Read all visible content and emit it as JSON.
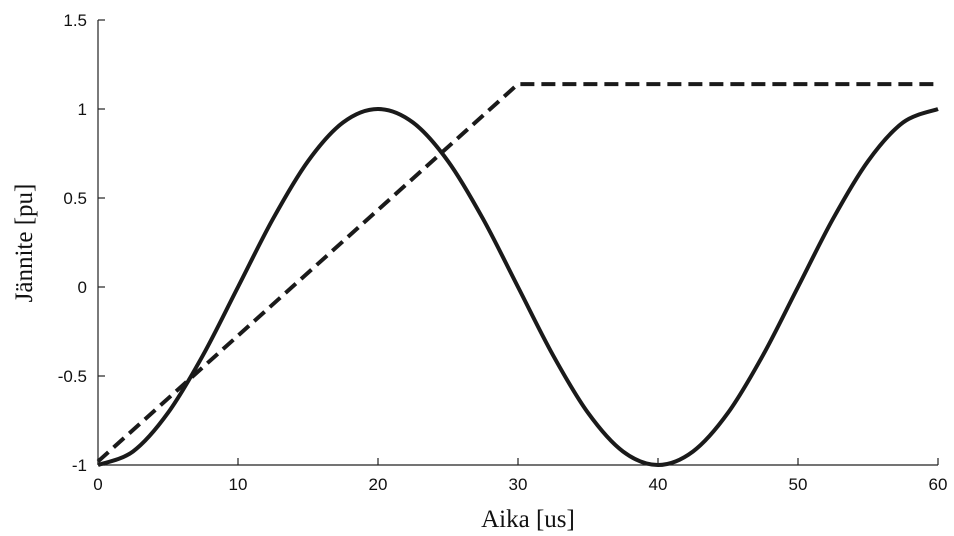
{
  "chart_data": {
    "type": "line",
    "title": "",
    "xlabel": "Aika [us]",
    "ylabel": "Jännite [pu]",
    "xlim": [
      0,
      60
    ],
    "ylim": [
      -1,
      1.5
    ],
    "xticks": [
      0,
      10,
      20,
      30,
      40,
      50,
      60
    ],
    "xtick_labels": [
      "0",
      "10",
      "20",
      "30",
      "40",
      "50",
      "60"
    ],
    "yticks": [
      -1,
      -0.5,
      0,
      0.5,
      1,
      1.5
    ],
    "ytick_labels": [
      "-1",
      "-0.5",
      "0",
      "0.5",
      "1",
      "1.5"
    ],
    "grid": false,
    "legend": false,
    "series": [
      {
        "style": "solid",
        "color": "#1a1a1a",
        "x": [
          0,
          2.5,
          5,
          7.5,
          10,
          12.5,
          15,
          17.5,
          20,
          22.5,
          25,
          27.5,
          30,
          32.5,
          35,
          37.5,
          40,
          42.5,
          45,
          47.5,
          50,
          52.5,
          55,
          57.5,
          60
        ],
        "y": [
          -1,
          -0.924,
          -0.707,
          -0.383,
          0,
          0.383,
          0.707,
          0.924,
          1,
          0.924,
          0.707,
          0.383,
          0,
          -0.383,
          -0.707,
          -0.924,
          -1,
          -0.924,
          -0.707,
          -0.383,
          0,
          0.383,
          0.707,
          0.924,
          1
        ]
      },
      {
        "style": "dashed",
        "color": "#1a1a1a",
        "x": [
          0,
          30,
          60
        ],
        "y": [
          -0.98,
          1.14,
          1.14
        ]
      }
    ]
  }
}
